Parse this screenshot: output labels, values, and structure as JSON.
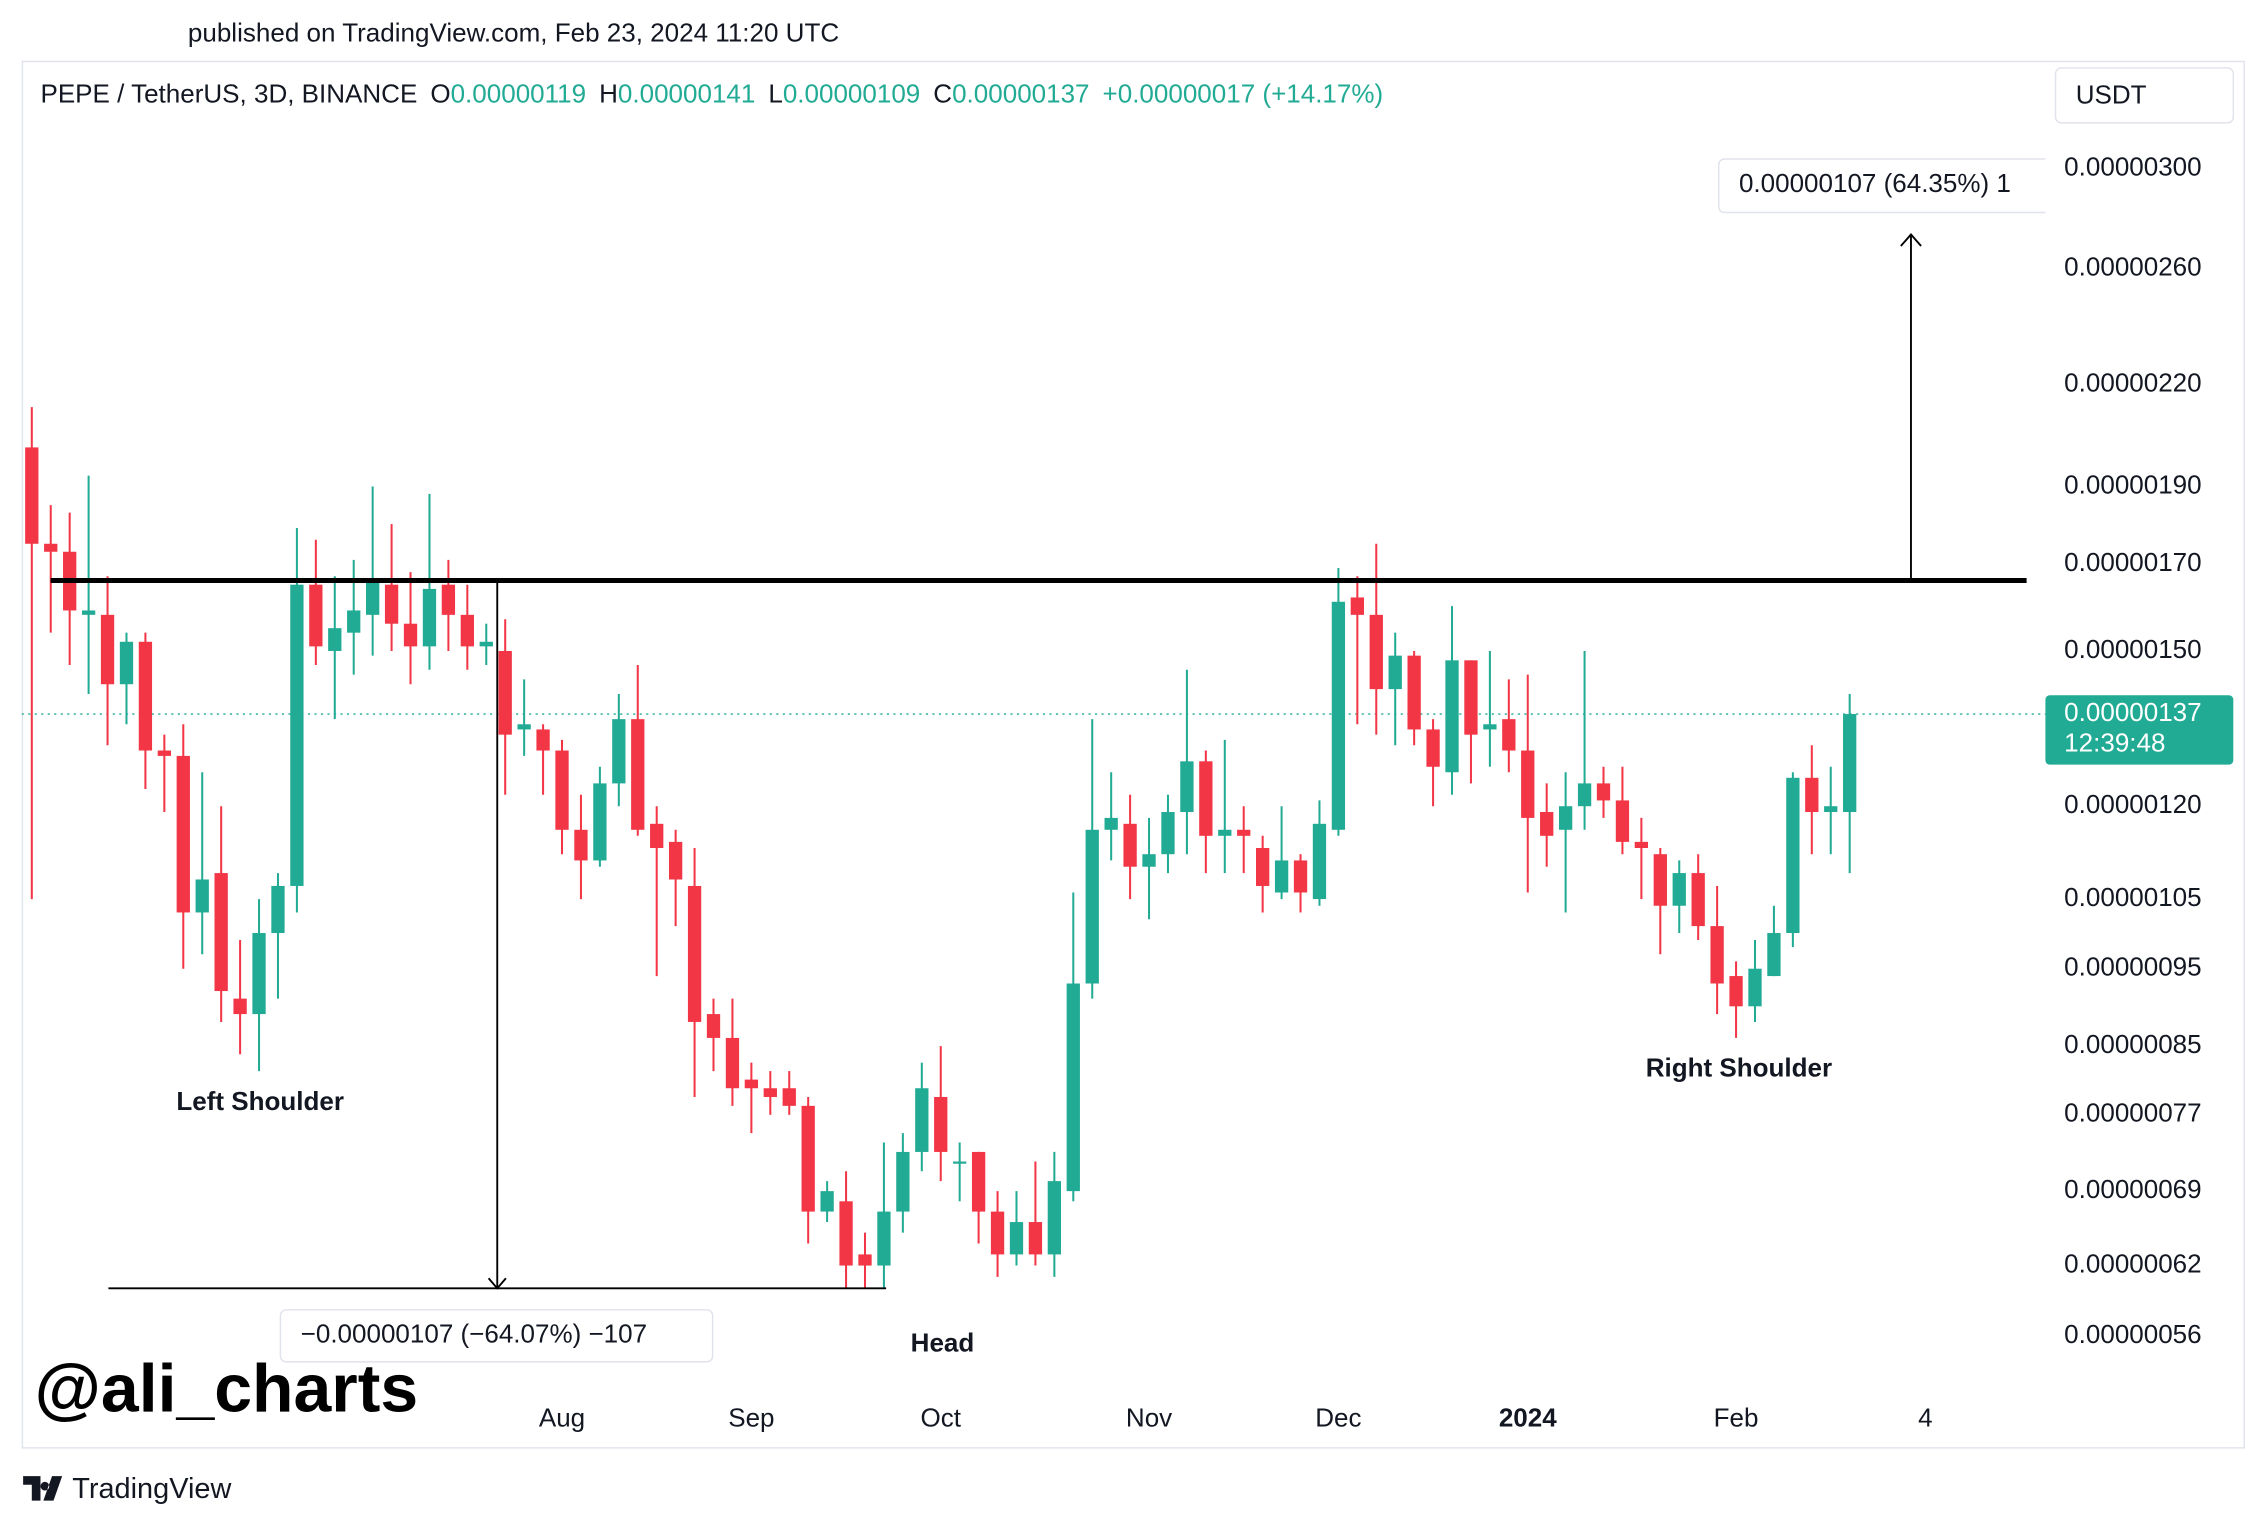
{
  "published": "published on TradingView.com, Feb 23, 2024 11:20 UTC",
  "watermark": "@ali_charts",
  "brand": "TradingView",
  "chart_data": {
    "type": "candlestick",
    "header": {
      "symbol": "PEPE / TetherUS, 3D, BINANCE",
      "ohlc": [
        {
          "key": "O",
          "value": "0.00000119"
        },
        {
          "key": "H",
          "value": "0.00000141"
        },
        {
          "key": "L",
          "value": "0.00000109"
        },
        {
          "key": "C",
          "value": "0.00000137"
        }
      ],
      "change": "+0.00000017 (+14.17%)"
    },
    "currency": "USDT",
    "up_color": "#22ab94",
    "down_color": "#f23645",
    "log_scale": true,
    "grid": false,
    "categories": [
      null,
      null,
      null,
      null,
      null,
      null,
      null,
      null,
      null,
      null,
      null,
      null,
      null,
      null,
      null,
      null,
      null,
      null,
      null,
      null,
      null,
      null,
      null,
      null,
      null,
      null,
      null,
      null,
      "Aug",
      null,
      null,
      null,
      null,
      null,
      null,
      null,
      null,
      null,
      "Sep",
      null,
      null,
      null,
      null,
      null,
      null,
      null,
      null,
      null,
      "Oct",
      null,
      null,
      null,
      null,
      null,
      null,
      null,
      null,
      null,
      null,
      "Nov",
      null,
      null,
      null,
      null,
      null,
      null,
      null,
      null,
      null,
      "Dec",
      null,
      null,
      null,
      null,
      null,
      null,
      null,
      null,
      null,
      "2024",
      null,
      null,
      null,
      null,
      null,
      null,
      null,
      null,
      null,
      null,
      "Feb",
      null,
      null,
      null,
      null,
      null,
      null,
      null,
      null,
      null,
      "4"
    ],
    "open": [
      2.01e-06,
      1.75e-06,
      1.73e-06,
      1.58e-06,
      1.58e-06,
      1.43e-06,
      1.52e-06,
      1.3e-06,
      1.29e-06,
      1.03e-06,
      1.09e-06,
      9.1e-07,
      8.9e-07,
      1e-06,
      1.07e-06,
      1.65e-06,
      1.5e-06,
      1.54e-06,
      1.58e-06,
      1.65e-06,
      1.56e-06,
      1.51e-06,
      1.65e-06,
      1.58e-06,
      1.51e-06,
      1.5e-06,
      1.34e-06,
      1.34e-06,
      1.3e-06,
      1.16e-06,
      1.11e-06,
      1.24e-06,
      1.36e-06,
      1.17e-06,
      1.14e-06,
      1.07e-06,
      8.9e-07,
      8.6e-07,
      8.1e-07,
      8e-07,
      8e-07,
      7.8e-07,
      6.7e-07,
      6.8e-07,
      6.3e-07,
      6.2e-07,
      6.7e-07,
      7.3e-07,
      7.9e-07,
      7.2e-07,
      7.3e-07,
      6.7e-07,
      6.3e-07,
      6.6e-07,
      6.3e-07,
      6.9e-07,
      9.3e-07,
      1.16e-06,
      1.17e-06,
      1.1e-06,
      1.12e-06,
      1.19e-06,
      1.28e-06,
      1.15e-06,
      1.16e-06,
      1.13e-06,
      1.06e-06,
      1.11e-06,
      1.05e-06,
      1.16e-06,
      1.62e-06,
      1.58e-06,
      1.42e-06,
      1.49e-06,
      1.34e-06,
      1.26e-06,
      1.48e-06,
      1.34e-06,
      1.36e-06,
      1.3e-06,
      1.19e-06,
      1.16e-06,
      1.2e-06,
      1.24e-06,
      1.21e-06,
      1.14e-06,
      1.12e-06,
      1.04e-06,
      1.09e-06,
      1.01e-06,
      9.4e-07,
      9e-07,
      9.4e-07,
      1e-06,
      1.25e-06,
      1.19e-06,
      1.19e-06,
      null,
      null,
      null,
      null
    ],
    "high": [
      2.13e-06,
      1.85e-06,
      1.83e-06,
      1.93e-06,
      1.67e-06,
      1.54e-06,
      1.54e-06,
      1.33e-06,
      1.35e-06,
      1.26e-06,
      1.2e-06,
      9.9e-07,
      1.05e-06,
      1.09e-06,
      1.79e-06,
      1.76e-06,
      1.67e-06,
      1.71e-06,
      1.9e-06,
      1.8e-06,
      1.68e-06,
      1.88e-06,
      1.71e-06,
      1.65e-06,
      1.56e-06,
      1.57e-06,
      1.44e-06,
      1.35e-06,
      1.32e-06,
      1.22e-06,
      1.27e-06,
      1.41e-06,
      1.47e-06,
      1.2e-06,
      1.16e-06,
      1.13e-06,
      9.1e-07,
      9.1e-07,
      8.3e-07,
      8.2e-07,
      8.2e-07,
      7.9e-07,
      7e-07,
      7.1e-07,
      6.5e-07,
      7.4e-07,
      7.5e-07,
      8.3e-07,
      8.5e-07,
      7.4e-07,
      7.3e-07,
      6.9e-07,
      6.9e-07,
      7.2e-07,
      7.3e-07,
      1.06e-06,
      1.36e-06,
      1.26e-06,
      1.22e-06,
      1.18e-06,
      1.22e-06,
      1.46e-06,
      1.3e-06,
      1.32e-06,
      1.2e-06,
      1.15e-06,
      1.2e-06,
      1.12e-06,
      1.21e-06,
      1.69e-06,
      1.67e-06,
      1.75e-06,
      1.54e-06,
      1.5e-06,
      1.36e-06,
      1.6e-06,
      1.48e-06,
      1.5e-06,
      1.44e-06,
      1.45e-06,
      1.24e-06,
      1.26e-06,
      1.5e-06,
      1.27e-06,
      1.27e-06,
      1.18e-06,
      1.13e-06,
      1.11e-06,
      1.12e-06,
      1.07e-06,
      9.6e-07,
      9.9e-07,
      1.04e-06,
      1.26e-06,
      1.31e-06,
      1.27e-06,
      1.41e-06,
      null,
      null,
      null,
      null
    ],
    "low": [
      1.05e-06,
      1.54e-06,
      1.47e-06,
      1.41e-06,
      1.31e-06,
      1.35e-06,
      1.23e-06,
      1.19e-06,
      9.5e-07,
      9.7e-07,
      8.8e-07,
      8.4e-07,
      8.2e-07,
      9.1e-07,
      1.03e-06,
      1.47e-06,
      1.36e-06,
      1.45e-06,
      1.49e-06,
      1.5e-06,
      1.43e-06,
      1.46e-06,
      1.5e-06,
      1.46e-06,
      1.47e-06,
      1.22e-06,
      1.29e-06,
      1.22e-06,
      1.12e-06,
      1.05e-06,
      1.1e-06,
      1.2e-06,
      1.15e-06,
      9.4e-07,
      1.01e-06,
      7.9e-07,
      8.2e-07,
      7.8e-07,
      7.5e-07,
      7.7e-07,
      7.7e-07,
      6.4e-07,
      6.6e-07,
      6e-07,
      6e-07,
      6e-07,
      6.5e-07,
      7.1e-07,
      7e-07,
      6.8e-07,
      6.4e-07,
      6.1e-07,
      6.2e-07,
      6.2e-07,
      6.1e-07,
      6.8e-07,
      9.1e-07,
      1.11e-06,
      1.05e-06,
      1.02e-06,
      1.09e-06,
      1.12e-06,
      1.09e-06,
      1.09e-06,
      1.09e-06,
      1.03e-06,
      1.05e-06,
      1.03e-06,
      1.04e-06,
      1.15e-06,
      1.35e-06,
      1.33e-06,
      1.31e-06,
      1.31e-06,
      1.2e-06,
      1.22e-06,
      1.24e-06,
      1.27e-06,
      1.26e-06,
      1.06e-06,
      1.1e-06,
      1.03e-06,
      1.16e-06,
      1.18e-06,
      1.12e-06,
      1.05e-06,
      9.7e-07,
      1e-06,
      9.9e-07,
      8.9e-07,
      8.6e-07,
      8.8e-07,
      9.4e-07,
      9.8e-07,
      1.12e-06,
      1.12e-06,
      1.09e-06,
      null,
      null,
      null,
      null
    ],
    "close": [
      1.75e-06,
      1.73e-06,
      1.59e-06,
      1.59e-06,
      1.43e-06,
      1.52e-06,
      1.3e-06,
      1.29e-06,
      1.03e-06,
      1.08e-06,
      9.2e-07,
      8.9e-07,
      1e-06,
      1.07e-06,
      1.65e-06,
      1.51e-06,
      1.55e-06,
      1.59e-06,
      1.66e-06,
      1.56e-06,
      1.51e-06,
      1.64e-06,
      1.58e-06,
      1.51e-06,
      1.52e-06,
      1.33e-06,
      1.35e-06,
      1.3e-06,
      1.16e-06,
      1.11e-06,
      1.24e-06,
      1.36e-06,
      1.16e-06,
      1.13e-06,
      1.08e-06,
      8.8e-07,
      8.6e-07,
      8e-07,
      8e-07,
      7.9e-07,
      7.8e-07,
      6.7e-07,
      6.9e-07,
      6.2e-07,
      6.2e-07,
      6.7e-07,
      7.3e-07,
      8e-07,
      7.3e-07,
      7.2e-07,
      6.7e-07,
      6.3e-07,
      6.6e-07,
      6.3e-07,
      7e-07,
      9.3e-07,
      1.16e-06,
      1.18e-06,
      1.1e-06,
      1.12e-06,
      1.19e-06,
      1.28e-06,
      1.15e-06,
      1.16e-06,
      1.15e-06,
      1.07e-06,
      1.11e-06,
      1.06e-06,
      1.17e-06,
      1.61e-06,
      1.58e-06,
      1.42e-06,
      1.49e-06,
      1.34e-06,
      1.27e-06,
      1.48e-06,
      1.33e-06,
      1.35e-06,
      1.3e-06,
      1.18e-06,
      1.15e-06,
      1.2e-06,
      1.24e-06,
      1.21e-06,
      1.14e-06,
      1.13e-06,
      1.04e-06,
      1.09e-06,
      1.01e-06,
      9.3e-07,
      9e-07,
      9.5e-07,
      1e-06,
      1.25e-06,
      1.19e-06,
      1.2e-06,
      1.37e-06,
      null,
      null,
      null,
      null
    ],
    "ylim": [
      5.2e-07,
      3.49e-06
    ],
    "yticks": [
      {
        "value": 3e-06,
        "label": "0.00000300"
      },
      {
        "value": 2.6e-06,
        "label": "0.00000260"
      },
      {
        "value": 2.2e-06,
        "label": "0.00000220"
      },
      {
        "value": 1.9e-06,
        "label": "0.00000190"
      },
      {
        "value": 1.7e-06,
        "label": "0.00000170"
      },
      {
        "value": 1.5e-06,
        "label": "0.00000150"
      },
      {
        "value": 1.2e-06,
        "label": "0.00000120"
      },
      {
        "value": 1.05e-06,
        "label": "0.00000105"
      },
      {
        "value": 9.5e-07,
        "label": "0.00000095"
      },
      {
        "value": 8.5e-07,
        "label": "0.00000085"
      },
      {
        "value": 7.7e-07,
        "label": "0.00000077"
      },
      {
        "value": 6.9e-07,
        "label": "0.00000069"
      },
      {
        "value": 6.2e-07,
        "label": "0.00000062"
      },
      {
        "value": 5.6e-07,
        "label": "0.00000056"
      }
    ],
    "last_price": {
      "value": 1.37e-06,
      "label": "0.00000137",
      "countdown": "12:39:48"
    },
    "neckline": 1.66e-06,
    "head_low": 6e-07,
    "target": 2.73e-06,
    "measure_down_label": "−0.00000107 (−64.07%) −107",
    "measure_up_label": "0.00000107 (64.35%) 1",
    "pattern_labels": [
      "Left Shoulder",
      "Head",
      "Right Shoulder"
    ]
  }
}
